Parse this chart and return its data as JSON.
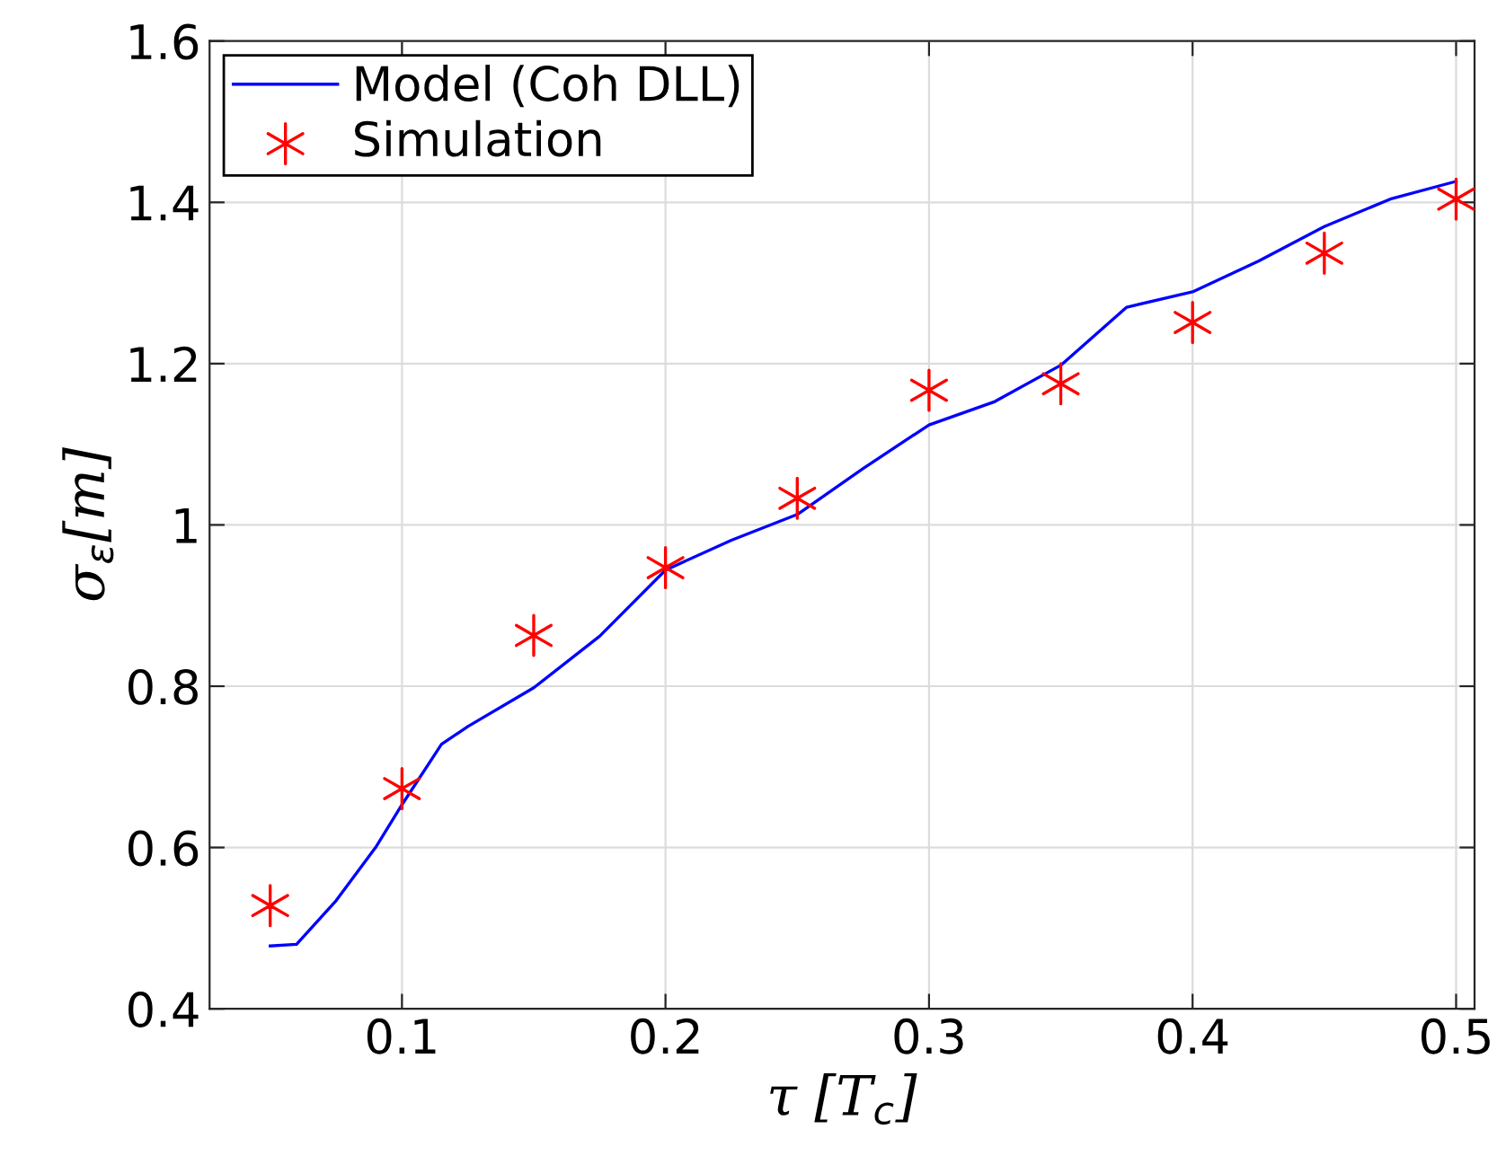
{
  "chart_data": {
    "type": "line",
    "xlabel": "τ [T$_{c}$]",
    "ylabel": "σ$_{ε}$[m]",
    "xlim": [
      0.027,
      0.507
    ],
    "ylim": [
      0.4,
      1.6
    ],
    "xticks": [
      0.1,
      0.2,
      0.3,
      0.4,
      0.5
    ],
    "yticks": [
      0.4,
      0.6,
      0.8,
      1,
      1.2,
      1.4,
      1.6
    ],
    "grid": true,
    "legend": "top left",
    "series": [
      {
        "name": "Model (Coh DLL)",
        "color": "#0000ff",
        "marker": "none",
        "line_style": "solid",
        "x": [
          0.05,
          0.06,
          0.075,
          0.09,
          0.1,
          0.115,
          0.125,
          0.15,
          0.175,
          0.2,
          0.225,
          0.25,
          0.275,
          0.3,
          0.325,
          0.35,
          0.375,
          0.4,
          0.425,
          0.45,
          0.475,
          0.5
        ],
        "values": [
          0.478,
          0.48,
          0.534,
          0.6,
          0.653,
          0.728,
          0.75,
          0.798,
          0.862,
          0.944,
          0.981,
          1.013,
          1.07,
          1.124,
          1.153,
          1.198,
          1.27,
          1.289,
          1.327,
          1.37,
          1.404,
          1.426
        ]
      },
      {
        "name": "Simulation",
        "type": "scatter",
        "color": "#ff0000",
        "marker": "cross",
        "x": [
          0.05,
          0.1,
          0.15,
          0.2,
          0.25,
          0.3,
          0.35,
          0.4,
          0.45,
          0.5
        ],
        "values": [
          0.528,
          0.673,
          0.863,
          0.947,
          1.033,
          1.167,
          1.175,
          1.251,
          1.337,
          1.404
        ]
      }
    ]
  }
}
